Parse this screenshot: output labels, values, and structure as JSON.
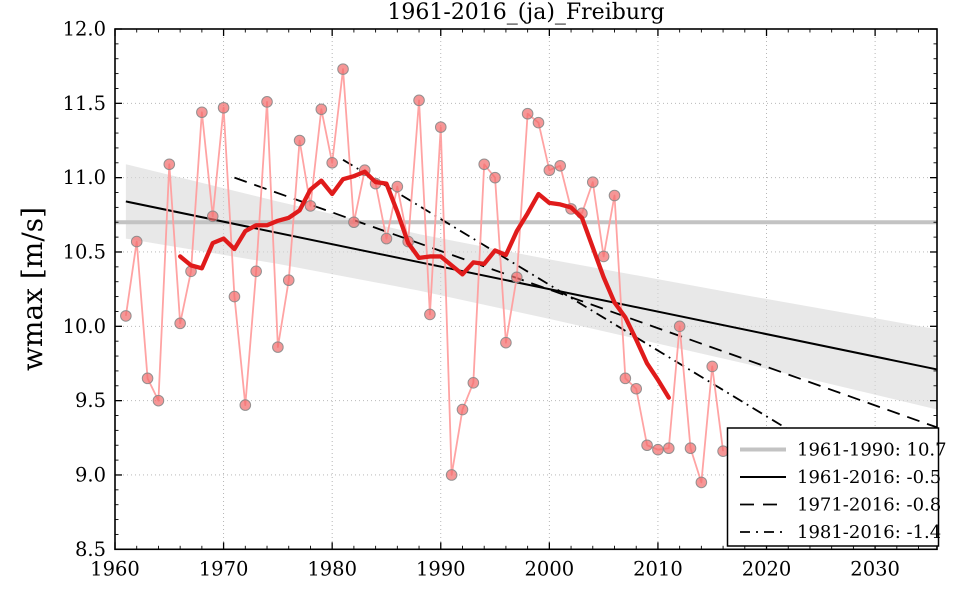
{
  "title": "1961-2016_(ja)_Freiburg",
  "axes": {
    "ylabel": "wmax [m/s]",
    "xlim": [
      1960,
      2035.7
    ],
    "ylim": [
      8.5,
      12.0
    ],
    "x_ticks": [
      1960,
      1970,
      1980,
      1990,
      2000,
      2010,
      2020,
      2030
    ],
    "y_ticks": [
      8.5,
      9.0,
      9.5,
      10.0,
      10.5,
      11.0,
      11.5,
      12.0
    ],
    "x_minor_step": 2,
    "y_minor_step": 0.1,
    "grid": true
  },
  "legend": {
    "position": "lower right",
    "items": [
      {
        "key": "mean_1961_1990",
        "label": "1961-1990: 10.7"
      },
      {
        "key": "trend_1961_2016",
        "label": "1961-2016: -0.5"
      },
      {
        "key": "trend_1971_2016",
        "label": "1971-2016: -0.8"
      },
      {
        "key": "trend_1981_2016",
        "label": "1981-2016: -1.4"
      }
    ]
  },
  "chart_data": {
    "type": "line",
    "title": "1961-2016_(ja)_Freiburg",
    "xlabel": "",
    "ylabel": "wmax [m/s]",
    "xlim": [
      1960,
      2035.7
    ],
    "ylim": [
      8.5,
      12.0
    ],
    "legend_position": "lower right",
    "grid": true,
    "series": [
      {
        "name": "annual_wmax",
        "style": "thin salmon line with circle markers",
        "x": [
          1961,
          1962,
          1963,
          1964,
          1965,
          1966,
          1967,
          1968,
          1969,
          1970,
          1971,
          1972,
          1973,
          1974,
          1975,
          1976,
          1977,
          1978,
          1979,
          1980,
          1981,
          1982,
          1983,
          1984,
          1985,
          1986,
          1987,
          1988,
          1989,
          1990,
          1991,
          1992,
          1993,
          1994,
          1995,
          1996,
          1997,
          1998,
          1999,
          2000,
          2001,
          2002,
          2003,
          2004,
          2005,
          2006,
          2007,
          2008,
          2009,
          2010,
          2011,
          2012,
          2013,
          2014,
          2015,
          2016
        ],
        "values": [
          10.07,
          10.57,
          9.65,
          9.5,
          11.09,
          10.02,
          10.37,
          11.44,
          10.74,
          11.47,
          10.2,
          9.47,
          10.37,
          11.51,
          9.86,
          10.31,
          11.25,
          10.81,
          11.46,
          11.1,
          11.73,
          10.7,
          11.05,
          10.96,
          10.59,
          10.94,
          10.57,
          11.52,
          10.08,
          11.34,
          9.0,
          9.44,
          9.62,
          11.09,
          11.0,
          9.89,
          10.33,
          11.43,
          11.37,
          11.05,
          11.08,
          10.79,
          10.76,
          10.97,
          10.47,
          10.88,
          9.65,
          9.58,
          9.2,
          9.17,
          9.18,
          10.0,
          9.18,
          8.95,
          9.73,
          9.16
        ]
      },
      {
        "name": "running_mean_11yr",
        "style": "thick red line",
        "x": [
          1966,
          1967,
          1968,
          1969,
          1970,
          1971,
          1972,
          1973,
          1974,
          1975,
          1976,
          1977,
          1978,
          1979,
          1980,
          1981,
          1982,
          1983,
          1984,
          1985,
          1986,
          1987,
          1988,
          1989,
          1990,
          1991,
          1992,
          1993,
          1994,
          1995,
          1996,
          1997,
          1998,
          1999,
          2000,
          2001,
          2002,
          2003,
          2004,
          2005,
          2006,
          2007,
          2008,
          2009,
          2010,
          2011
        ],
        "values": [
          10.47,
          10.41,
          10.39,
          10.56,
          10.59,
          10.52,
          10.64,
          10.68,
          10.68,
          10.71,
          10.73,
          10.78,
          10.92,
          10.98,
          10.89,
          10.99,
          11.01,
          11.04,
          10.97,
          10.96,
          10.77,
          10.56,
          10.46,
          10.47,
          10.47,
          10.41,
          10.35,
          10.43,
          10.42,
          10.51,
          10.48,
          10.64,
          10.76,
          10.89,
          10.83,
          10.82,
          10.8,
          10.73,
          10.53,
          10.33,
          10.16,
          10.06,
          9.91,
          9.75,
          9.64,
          9.52
        ]
      },
      {
        "name": "mean_1961_1990",
        "style": "thick gray horizontal line",
        "x": [
          1960,
          2035.7
        ],
        "values": [
          10.7,
          10.7
        ]
      },
      {
        "name": "trend_1961_2016",
        "style": "black solid line",
        "x": [
          1961,
          2035.7
        ],
        "values": [
          10.84,
          9.71
        ]
      },
      {
        "name": "trend_1971_2016",
        "style": "black dashed line",
        "x": [
          1971,
          2035.7
        ],
        "values": [
          11.0,
          9.32
        ]
      },
      {
        "name": "trend_1981_2016",
        "style": "black dash-dot line",
        "x": [
          1981,
          2035.7
        ],
        "values": [
          11.12,
          8.7
        ]
      }
    ],
    "confidence_band": {
      "belongs_to": "trend_1961_2016",
      "x": [
        1961,
        1975,
        1988,
        2000,
        2018,
        2035.7
      ],
      "upper": [
        11.09,
        10.84,
        10.62,
        10.45,
        10.21,
        9.98
      ],
      "lower": [
        10.59,
        10.42,
        10.24,
        10.05,
        9.75,
        9.44
      ]
    },
    "colors": {
      "annual_line": "#ff9e9e",
      "marker_fill": "#f26d6d",
      "marker_edge": "#8a8a8a",
      "smoothed_line": "#e01b1b",
      "mean_line": "#c3c3c3",
      "trend_line": "#000000",
      "band": "#d9d9d9",
      "grid": "#a6a6a6"
    }
  }
}
